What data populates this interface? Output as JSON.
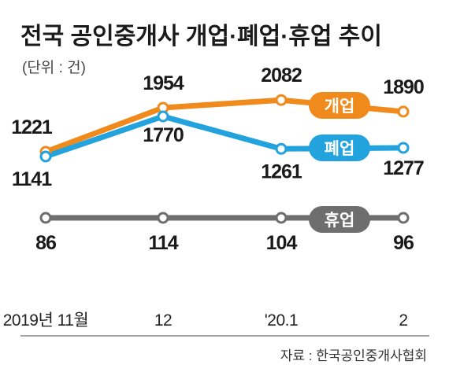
{
  "title": "전국 공인중개사 개업·폐업·휴업 추이",
  "unit_label": "(단위 : 건)",
  "source": "자료 : 한국공인중개사협회",
  "chart_data": {
    "type": "line",
    "categories": [
      "2019년 11월",
      "12",
      "'20.1",
      "2"
    ],
    "series": [
      {
        "name": "개업",
        "values": [
          1221,
          1954,
          2082,
          1890
        ],
        "color": "#f08a1c"
      },
      {
        "name": "폐업",
        "values": [
          1141,
          1770,
          1261,
          1277
        ],
        "color": "#22a3dd"
      },
      {
        "name": "휴업",
        "values": [
          86,
          114,
          104,
          96
        ],
        "color": "#6e6e6e"
      }
    ]
  }
}
